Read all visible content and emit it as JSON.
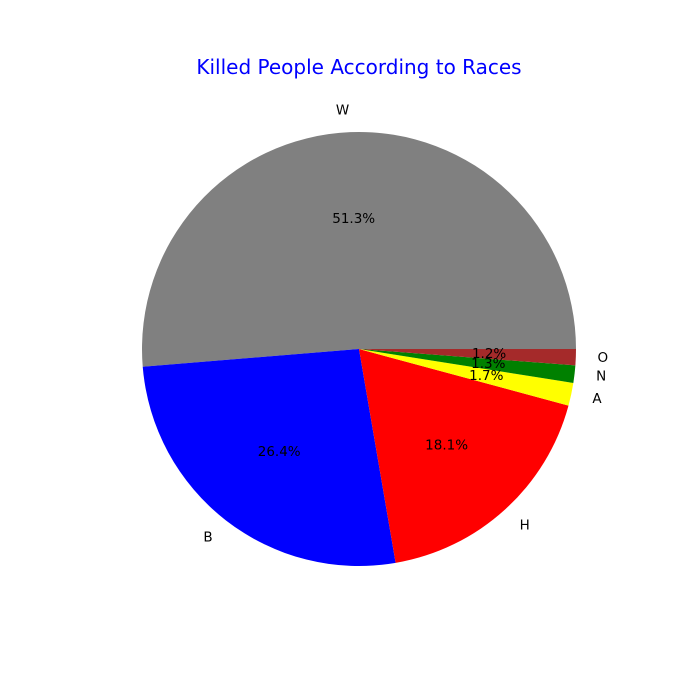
{
  "chart_data": {
    "type": "pie",
    "title": "Killed People According to Races",
    "title_color": "#0000ff",
    "start_angle_deg": 0,
    "direction": "counterclockwise",
    "slices": [
      {
        "label": "W",
        "value": 51.3,
        "pct_label": "51.3%",
        "color": "#808080"
      },
      {
        "label": "B",
        "value": 26.4,
        "pct_label": "26.4%",
        "color": "#0000ff"
      },
      {
        "label": "H",
        "value": 18.1,
        "pct_label": "18.1%",
        "color": "#ff0000"
      },
      {
        "label": "A",
        "value": 1.7,
        "pct_label": "1.7%",
        "color": "#ffff00"
      },
      {
        "label": "N",
        "value": 1.3,
        "pct_label": "1.3%",
        "color": "#008000"
      },
      {
        "label": "O",
        "value": 1.2,
        "pct_label": "1.2%",
        "color": "#a52a2a"
      }
    ]
  }
}
